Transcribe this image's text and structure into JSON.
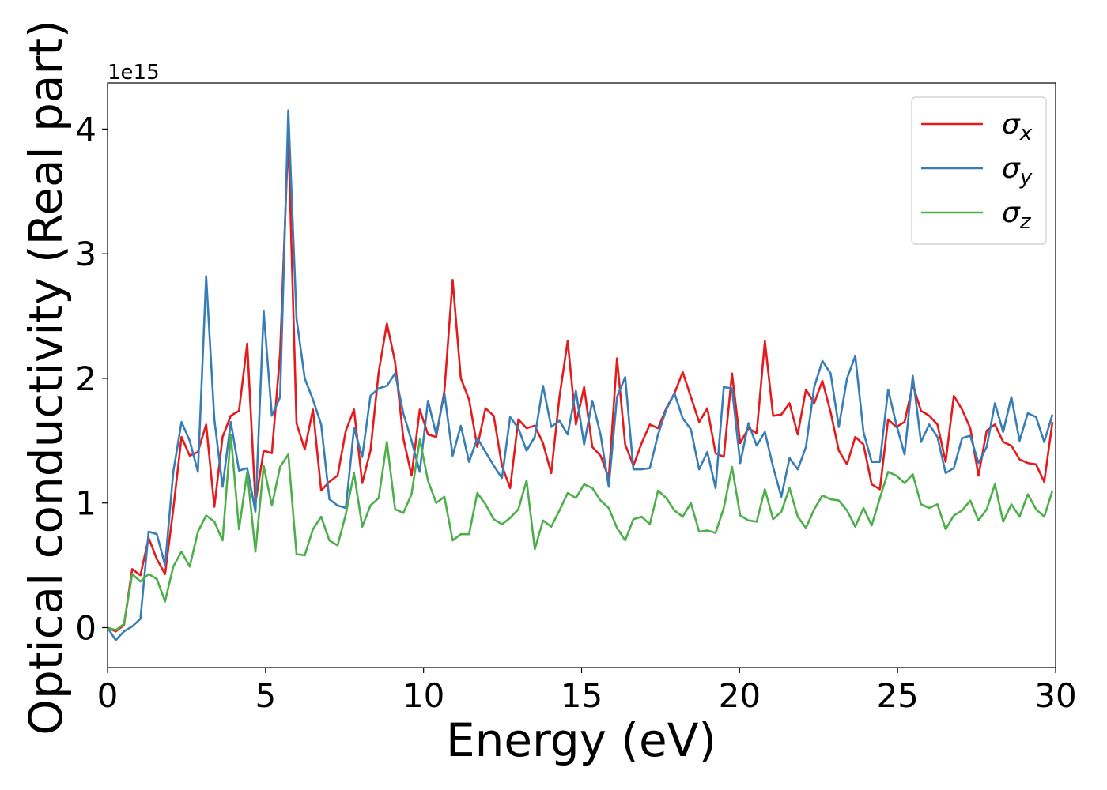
{
  "chart_data": {
    "type": "line",
    "x_label": "Energy (eV)",
    "y_label": "Optical conductivity (Real part)",
    "y_offset_label": "1e15",
    "x": [
      0,
      0.26,
      0.52,
      0.78,
      1.04,
      1.3,
      1.56,
      1.82,
      2.08,
      2.34,
      2.6,
      2.86,
      3.12,
      3.38,
      3.64,
      3.9,
      4.16,
      4.42,
      4.68,
      4.94,
      5.2,
      5.46,
      5.72,
      5.98,
      6.24,
      6.5,
      6.76,
      7.02,
      7.28,
      7.54,
      7.8,
      8.06,
      8.32,
      8.58,
      8.84,
      9.1,
      9.36,
      9.62,
      9.88,
      10.14,
      10.4,
      10.66,
      10.92,
      11.18,
      11.44,
      11.7,
      11.96,
      12.22,
      12.48,
      12.74,
      13,
      13.26,
      13.52,
      13.78,
      14.04,
      14.3,
      14.56,
      14.82,
      15.08,
      15.34,
      15.6,
      15.86,
      16.12,
      16.38,
      16.64,
      16.9,
      17.16,
      17.42,
      17.68,
      17.94,
      18.2,
      18.46,
      18.72,
      18.98,
      19.24,
      19.5,
      19.76,
      20.02,
      20.28,
      20.54,
      20.8,
      21.06,
      21.32,
      21.58,
      21.84,
      22.1,
      22.36,
      22.62,
      22.88,
      23.14,
      23.4,
      23.66,
      23.92,
      24.18,
      24.44,
      24.7,
      24.96,
      25.22,
      25.48,
      25.74,
      26,
      26.26,
      26.52,
      26.78,
      27.04,
      27.3,
      27.56,
      27.82,
      28.08,
      28.34,
      28.6,
      28.86,
      29.12,
      29.38,
      29.64,
      29.9
    ],
    "series": [
      {
        "name": "σx",
        "color": "#e41a1c",
        "values": [
          0,
          -0.03,
          0.02,
          0.47,
          0.42,
          0.72,
          0.55,
          0.43,
          0.95,
          1.53,
          1.38,
          1.41,
          1.63,
          0.97,
          1.53,
          1.7,
          1.74,
          2.28,
          1.0,
          1.42,
          1.4,
          2.2,
          3.95,
          1.64,
          1.43,
          1.75,
          1.1,
          1.17,
          1.22,
          1.58,
          1.75,
          1.16,
          1.42,
          2.05,
          2.44,
          2.13,
          1.52,
          1.22,
          1.75,
          1.55,
          1.53,
          1.9,
          2.79,
          2.0,
          1.83,
          1.45,
          1.76,
          1.7,
          1.3,
          1.12,
          1.67,
          1.6,
          1.62,
          1.48,
          1.24,
          1.85,
          2.3,
          1.63,
          1.93,
          1.45,
          1.38,
          1.2,
          2.16,
          1.47,
          1.3,
          1.48,
          1.63,
          1.6,
          1.76,
          1.88,
          2.05,
          1.85,
          1.65,
          1.76,
          1.4,
          1.37,
          2.04,
          1.48,
          1.6,
          1.56,
          2.3,
          1.7,
          1.71,
          1.8,
          1.55,
          1.91,
          1.8,
          1.98,
          1.73,
          1.42,
          1.31,
          1.53,
          1.47,
          1.15,
          1.11,
          1.67,
          1.61,
          1.65,
          1.95,
          1.74,
          1.7,
          1.63,
          1.33,
          1.86,
          1.75,
          1.6,
          1.22,
          1.58,
          1.63,
          1.49,
          1.46,
          1.35,
          1.32,
          1.31,
          1.17,
          1.65
        ]
      },
      {
        "name": "σy",
        "color": "#377eb8",
        "values": [
          0,
          -0.1,
          -0.03,
          0.01,
          0.07,
          0.77,
          0.75,
          0.5,
          1.25,
          1.65,
          1.5,
          1.25,
          2.82,
          1.67,
          1.13,
          1.65,
          1.26,
          1.28,
          0.93,
          2.54,
          1.7,
          1.85,
          4.15,
          2.48,
          2.0,
          1.83,
          1.63,
          1.03,
          0.98,
          0.96,
          1.6,
          1.37,
          1.86,
          1.92,
          1.94,
          2.04,
          1.72,
          1.5,
          1.25,
          1.82,
          1.55,
          1.88,
          1.38,
          1.62,
          1.33,
          1.52,
          1.41,
          1.3,
          1.2,
          1.69,
          1.6,
          1.42,
          1.53,
          1.94,
          1.61,
          1.66,
          1.55,
          1.9,
          1.47,
          1.82,
          1.55,
          1.13,
          1.85,
          2.01,
          1.27,
          1.27,
          1.28,
          1.55,
          1.75,
          1.88,
          1.68,
          1.59,
          1.27,
          1.41,
          1.12,
          1.93,
          1.92,
          1.32,
          1.64,
          1.46,
          1.57,
          1.29,
          1.05,
          1.36,
          1.27,
          1.45,
          1.93,
          2.14,
          2.04,
          1.61,
          2.0,
          2.18,
          1.57,
          1.33,
          1.33,
          1.91,
          1.63,
          1.39,
          2.02,
          1.49,
          1.63,
          1.53,
          1.24,
          1.28,
          1.52,
          1.54,
          1.32,
          1.45,
          1.8,
          1.57,
          1.85,
          1.5,
          1.72,
          1.69,
          1.49,
          1.71
        ]
      },
      {
        "name": "σz",
        "color": "#4daf4a",
        "values": [
          0,
          -0.02,
          0.03,
          0.43,
          0.37,
          0.43,
          0.39,
          0.21,
          0.49,
          0.61,
          0.49,
          0.77,
          0.9,
          0.85,
          0.7,
          1.55,
          0.79,
          1.25,
          0.61,
          1.3,
          0.98,
          1.29,
          1.39,
          0.59,
          0.58,
          0.79,
          0.89,
          0.7,
          0.66,
          0.91,
          1.24,
          0.81,
          0.98,
          1.04,
          1.49,
          0.95,
          0.92,
          1.07,
          1.51,
          1.18,
          1.0,
          1.05,
          0.7,
          0.75,
          0.75,
          1.08,
          0.99,
          0.87,
          0.83,
          0.88,
          0.95,
          1.18,
          0.63,
          0.86,
          0.81,
          0.94,
          1.08,
          1.04,
          1.15,
          1.12,
          1.02,
          0.96,
          0.8,
          0.7,
          0.87,
          0.89,
          0.83,
          1.1,
          1.04,
          0.94,
          0.89,
          1.0,
          0.77,
          0.78,
          0.76,
          0.96,
          1.29,
          0.9,
          0.86,
          0.85,
          1.11,
          0.87,
          0.93,
          1.12,
          0.89,
          0.8,
          0.95,
          1.06,
          1.03,
          1.02,
          0.94,
          0.81,
          0.96,
          0.82,
          1.04,
          1.25,
          1.22,
          1.16,
          1.23,
          0.99,
          0.96,
          0.99,
          0.79,
          0.9,
          0.94,
          1.02,
          0.86,
          0.95,
          1.15,
          0.85,
          0.99,
          0.89,
          1.07,
          0.95,
          0.89,
          1.1
        ]
      }
    ],
    "xlim": [
      0,
      30
    ],
    "xticks": [
      0,
      5,
      10,
      15,
      20,
      25,
      30
    ],
    "ylim": [
      -0.32,
      4.37
    ],
    "yticks": [
      0,
      1,
      2,
      3,
      4
    ],
    "grid": false,
    "legend": "upper right"
  }
}
